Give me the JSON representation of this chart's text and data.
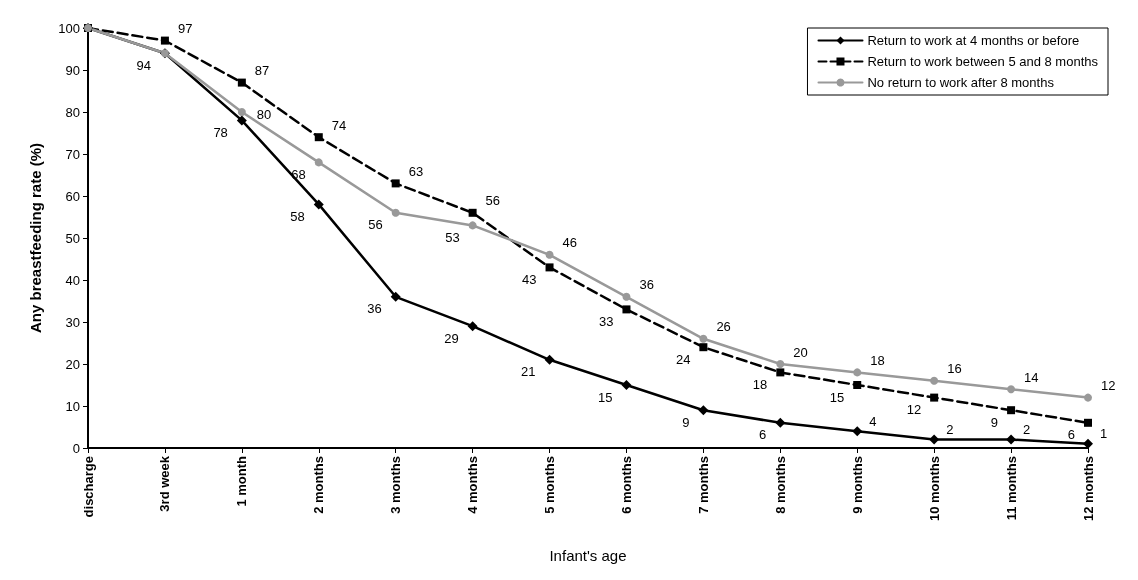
{
  "chart_data": {
    "type": "line",
    "xlabel": "Infant's age",
    "ylabel": "Any breastfeeding rate (%)",
    "categories": [
      "discharge",
      "3rd week",
      "1 month",
      "2 months",
      "3 months",
      "4 months",
      "5 months",
      "6 months",
      "7 months",
      "8 months",
      "9 months",
      "10 months",
      "11 months",
      "12 months"
    ],
    "ylim": [
      0,
      100
    ],
    "yticks": [
      0,
      10,
      20,
      30,
      40,
      50,
      60,
      70,
      80,
      90,
      100
    ],
    "grid": false,
    "legend": "top right",
    "series": [
      {
        "name": "Return to work at 4 months or before",
        "color": "#000000",
        "marker": "diamond",
        "line_style": "solid",
        "values": [
          100,
          94,
          78,
          58,
          36,
          29,
          21,
          15,
          9,
          6,
          4,
          2,
          2,
          1
        ],
        "value_labels": [
          null,
          "94",
          "78",
          "58",
          "36",
          "29",
          "21",
          "15",
          "9",
          "6",
          "4",
          "2",
          "2",
          "1"
        ]
      },
      {
        "name": "Return to work between 5 and 8 months",
        "color": "#000000",
        "marker": "square",
        "line_style": "dashed",
        "values": [
          100,
          97,
          87,
          74,
          63,
          56,
          43,
          33,
          24,
          18,
          15,
          12,
          9,
          6
        ],
        "value_labels": [
          null,
          "97",
          "87",
          "74",
          "63",
          "56",
          "43",
          "33",
          "24",
          "18",
          "15",
          "12",
          "9",
          "6"
        ]
      },
      {
        "name": "No return to work after 8 months",
        "color": "#999999",
        "marker": "circle",
        "line_style": "solid",
        "values": [
          100,
          94,
          80,
          68,
          56,
          53,
          46,
          36,
          26,
          20,
          18,
          16,
          14,
          12
        ],
        "value_labels": [
          null,
          null,
          "80",
          "68",
          "56",
          "53",
          "46",
          "36",
          "26",
          "20",
          "18",
          "16",
          "14",
          "12"
        ]
      }
    ]
  }
}
